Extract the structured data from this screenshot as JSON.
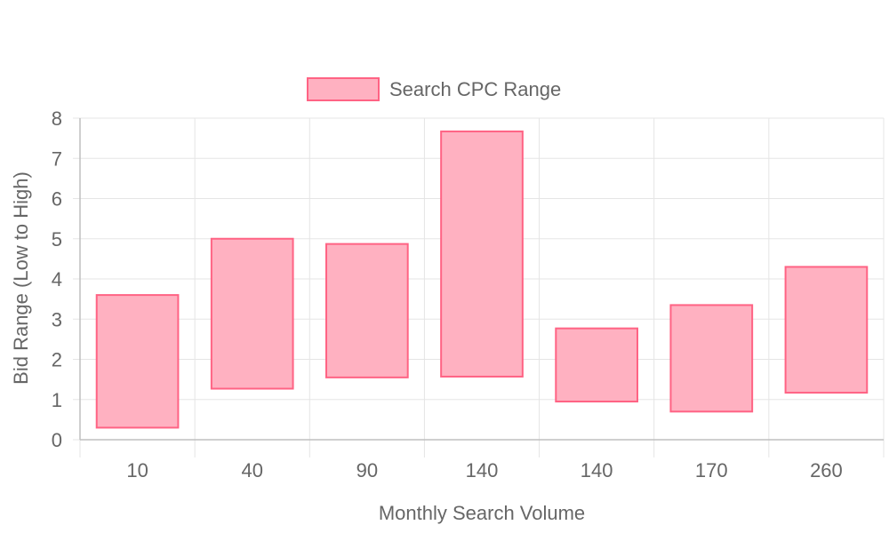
{
  "chart_data": {
    "type": "bar",
    "subtype": "floating-range",
    "categories": [
      "10",
      "40",
      "90",
      "140",
      "140",
      "170",
      "260"
    ],
    "series": [
      {
        "name": "Search CPC Range",
        "ranges": [
          [
            0.3,
            3.6
          ],
          [
            1.27,
            5.0
          ],
          [
            1.55,
            4.87
          ],
          [
            1.57,
            7.67
          ],
          [
            0.95,
            2.77
          ],
          [
            0.7,
            3.35
          ],
          [
            1.17,
            4.3
          ]
        ]
      }
    ],
    "xlabel": "Monthly Search Volume",
    "ylabel": "Bid Range (Low to High)",
    "ylim": [
      0,
      8
    ],
    "yticks": [
      0,
      1,
      2,
      3,
      4,
      5,
      6,
      7,
      8
    ],
    "grid": true,
    "legend_position": "top",
    "colors": {
      "bar_fill": "#ffb1c1",
      "bar_stroke": "#ff6384",
      "grid": "#e5e5e5",
      "axis": "#bfbfbf",
      "text": "#666666"
    }
  }
}
